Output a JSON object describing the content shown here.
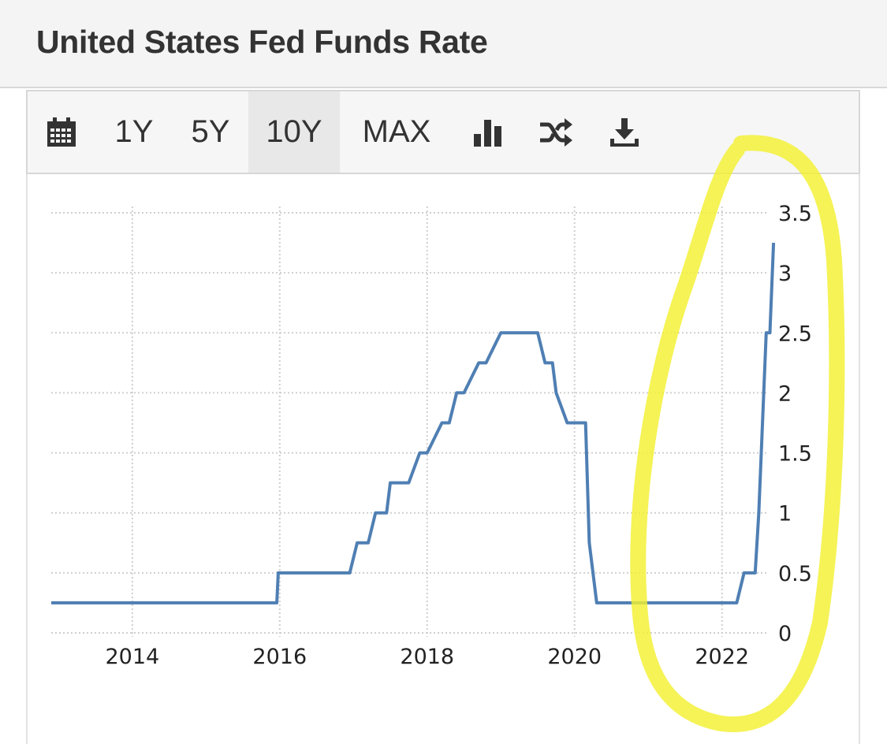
{
  "header": {
    "title": "United States Fed Funds Rate"
  },
  "toolbar": {
    "buttons": [
      "1Y",
      "5Y",
      "10Y",
      "MAX"
    ],
    "active": "10Y",
    "icons": [
      "calendar-icon",
      "bar-chart-icon",
      "shuffle-icon",
      "download-icon"
    ]
  },
  "colors": {
    "line": "#4f7fb3",
    "grid": "#cfcfcf",
    "highlight": "#f3f031",
    "header_bg": "#f4f4f4"
  },
  "chart_data": {
    "type": "line",
    "title": "",
    "xlabel": "",
    "ylabel": "",
    "xlim": [
      2012.9,
      2022.72
    ],
    "ylim": [
      0,
      3.5
    ],
    "x_ticks": [
      "2014",
      "2016",
      "2018",
      "2020",
      "2022"
    ],
    "y_ticks": [
      "0",
      "0.5",
      "1",
      "1.5",
      "2",
      "2.5",
      "3",
      "3.5"
    ],
    "y_axis_side": "right",
    "grid": true,
    "series": [
      {
        "x": [
          2012.9,
          2015.96,
          2015.98,
          2016.95,
          2017.05,
          2017.2,
          2017.3,
          2017.45,
          2017.5,
          2017.75,
          2017.9,
          2018.0,
          2018.2,
          2018.3,
          2018.4,
          2018.5,
          2018.7,
          2018.8,
          2019.0,
          2019.5,
          2019.6,
          2019.7,
          2019.75,
          2019.9,
          2020.15,
          2020.2,
          2020.3,
          2022.2,
          2022.3,
          2022.45,
          2022.5,
          2022.55,
          2022.6,
          2022.65,
          2022.7
        ],
        "y": [
          0.25,
          0.25,
          0.5,
          0.5,
          0.75,
          0.75,
          1.0,
          1.0,
          1.25,
          1.25,
          1.5,
          1.5,
          1.75,
          1.75,
          2.0,
          2.0,
          2.25,
          2.25,
          2.5,
          2.5,
          2.25,
          2.25,
          2.0,
          1.75,
          1.75,
          0.75,
          0.25,
          0.25,
          0.5,
          0.5,
          1.0,
          1.75,
          2.5,
          2.5,
          3.25
        ]
      }
    ]
  }
}
